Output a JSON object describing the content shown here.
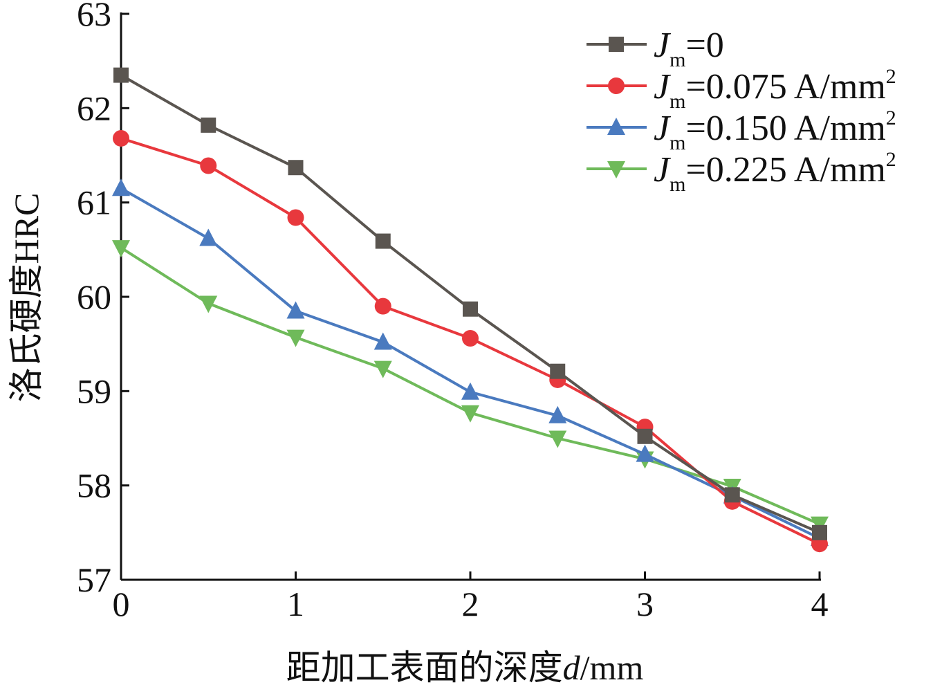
{
  "chart_data": {
    "type": "line",
    "xlabel": "距加工表面的深度",
    "xlabel_var": "d",
    "xlabel_unit": "/mm",
    "ylabel": "洛氏硬度HRC",
    "xlim": [
      0,
      4
    ],
    "ylim": [
      57,
      63
    ],
    "xticks": [
      "0",
      "1",
      "2",
      "3",
      "4"
    ],
    "yticks": [
      "57",
      "58",
      "59",
      "60",
      "61",
      "62",
      "63"
    ],
    "grid": false,
    "legend_position": "top-right",
    "x": [
      0,
      0.5,
      1,
      1.5,
      2,
      2.5,
      3,
      3.5,
      4
    ],
    "series": [
      {
        "name": "Jm=0",
        "label_var": "J",
        "label_sub": "m",
        "label_text": "=0",
        "label_sup": "",
        "color": "#5a5550",
        "marker": "square",
        "values": [
          62.35,
          61.82,
          61.37,
          60.59,
          59.87,
          59.21,
          58.52,
          57.9,
          57.5
        ]
      },
      {
        "name": "Jm=0.075 A/mm2",
        "label_var": "J",
        "label_sub": "m",
        "label_text": "=0.075 A/mm",
        "label_sup": "2",
        "color": "#e8383d",
        "marker": "circle",
        "values": [
          61.68,
          61.39,
          60.84,
          59.9,
          59.56,
          59.12,
          58.62,
          57.83,
          57.38
        ]
      },
      {
        "name": "Jm=0.150 A/mm2",
        "label_var": "J",
        "label_sub": "m",
        "label_text": "=0.150 A/mm",
        "label_sup": "2",
        "color": "#4a7abf",
        "marker": "triangle-up",
        "values": [
          61.15,
          60.62,
          59.85,
          59.52,
          58.99,
          58.74,
          58.33,
          57.89,
          57.44
        ]
      },
      {
        "name": "Jm=0.225 A/mm2",
        "label_var": "J",
        "label_sub": "m",
        "label_text": "=0.225 A/mm",
        "label_sup": "2",
        "color": "#6fba5a",
        "marker": "triangle-down",
        "values": [
          60.52,
          59.93,
          59.57,
          59.24,
          58.77,
          58.5,
          58.28,
          57.99,
          57.59
        ]
      }
    ]
  }
}
